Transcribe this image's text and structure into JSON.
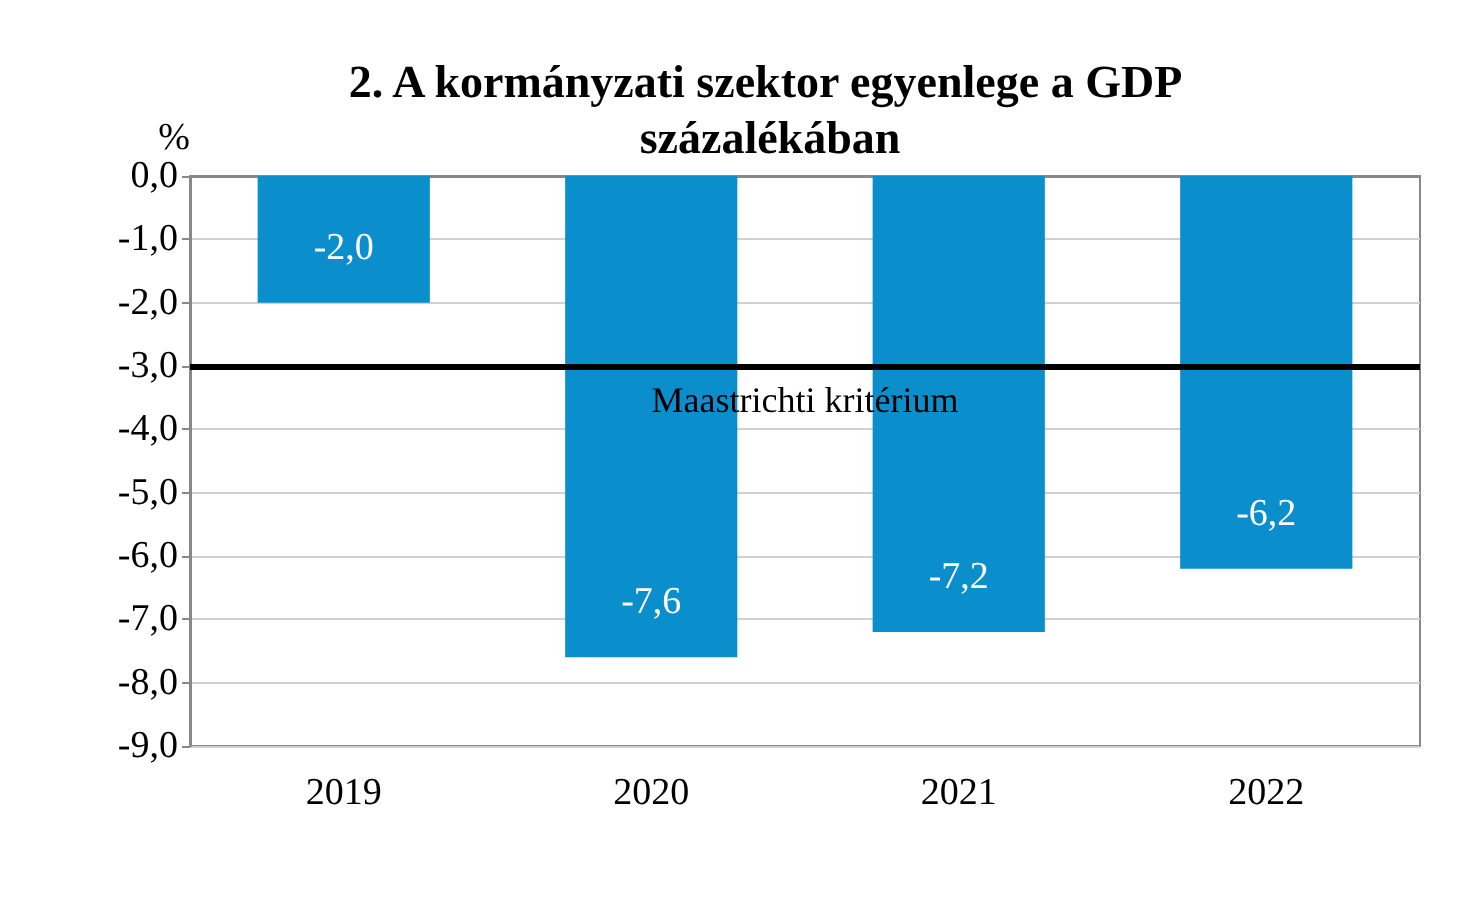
{
  "chart_data": {
    "type": "bar",
    "title": "2. A kormányzati szektor egyenlege a GDP százalékában",
    "ylabel": "%",
    "categories": [
      "2019",
      "2020",
      "2021",
      "2022"
    ],
    "values": [
      -2.0,
      -7.6,
      -7.2,
      -6.2
    ],
    "color": "#0a8fcc",
    "value_labels": [
      "-2,0",
      "-7,6",
      "-7,2",
      "-6,2"
    ],
    "ylim": [
      -9,
      0
    ],
    "yticks": [
      {
        "value": 0,
        "label": "0,0"
      },
      {
        "value": -1,
        "label": "-1,0"
      },
      {
        "value": -2,
        "label": "-2,0"
      },
      {
        "value": -3,
        "label": "-3,0"
      },
      {
        "value": -4,
        "label": "-4,0"
      },
      {
        "value": -5,
        "label": "-5,0"
      },
      {
        "value": -6,
        "label": "-6,0"
      },
      {
        "value": -7,
        "label": "-7,0"
      },
      {
        "value": -8,
        "label": "-8,0"
      },
      {
        "value": -9,
        "label": "-9,0"
      }
    ],
    "ref_lines": [
      {
        "axis": "y",
        "value": -3,
        "label": "Maastrichti kritérium",
        "color": "#000000"
      }
    ],
    "grid": "y"
  }
}
